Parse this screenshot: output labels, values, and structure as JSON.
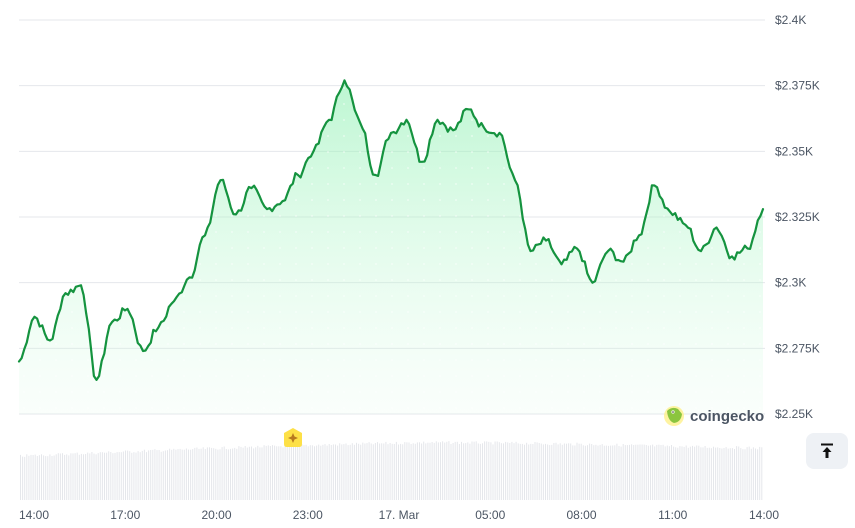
{
  "chart_data": {
    "type": "line",
    "title": "",
    "xlabel": "",
    "ylabel": "",
    "ylim": [
      2250,
      2400
    ],
    "grid": true,
    "legend": null,
    "y_ticks": [
      "$2.4K",
      "$2.375K",
      "$2.35K",
      "$2.325K",
      "$2.3K",
      "$2.275K",
      "$2.25K"
    ],
    "x_ticks": [
      "14:00",
      "17:00",
      "20:00",
      "23:00",
      "17. Mar",
      "05:00",
      "08:00",
      "11:00",
      "14:00"
    ],
    "series": [
      {
        "name": "Price (USD)",
        "color": "#16a34a",
        "x": [
          "14:00",
          "14:30",
          "15:00",
          "15:30",
          "16:00",
          "16:30",
          "17:00",
          "17:30",
          "18:00",
          "18:30",
          "19:00",
          "19:30",
          "20:00",
          "20:30",
          "21:00",
          "21:30",
          "22:00",
          "22:30",
          "23:00",
          "23:30",
          "00:00",
          "00:30",
          "01:00",
          "01:30",
          "02:00",
          "02:30",
          "03:00",
          "03:30",
          "04:00",
          "04:30",
          "05:00",
          "05:30",
          "06:00",
          "06:30",
          "07:00",
          "07:30",
          "08:00",
          "08:30",
          "09:00",
          "09:30",
          "10:00",
          "10:30",
          "11:00",
          "11:30",
          "12:00",
          "12:30",
          "13:00",
          "13:30",
          "14:00"
        ],
        "values": [
          2270,
          2287,
          2278,
          2296,
          2299,
          2263,
          2285,
          2290,
          2274,
          2283,
          2293,
          2302,
          2318,
          2339,
          2326,
          2336,
          2328,
          2331,
          2341,
          2350,
          2362,
          2377,
          2361,
          2341,
          2357,
          2362,
          2346,
          2362,
          2358,
          2366,
          2359,
          2357,
          2339,
          2312,
          2316,
          2307,
          2313,
          2300,
          2312,
          2308,
          2318,
          2337,
          2327,
          2322,
          2312,
          2321,
          2310,
          2313,
          2328
        ]
      },
      {
        "name": "Volume",
        "color": "#e5e7eb",
        "note": "relative bar heights, no axis shown"
      }
    ]
  },
  "watermark": {
    "brand": "coingecko"
  },
  "event_marker": {
    "icon": "sparkle-icon",
    "color": "#fde047"
  },
  "controls": {
    "scroll_top_icon": "arrow-up-to-line-icon"
  },
  "colors": {
    "line": "#16a34a",
    "fill_top": "#bbf7d0",
    "grid": "#e5e7eb",
    "text": "#4b5563"
  }
}
